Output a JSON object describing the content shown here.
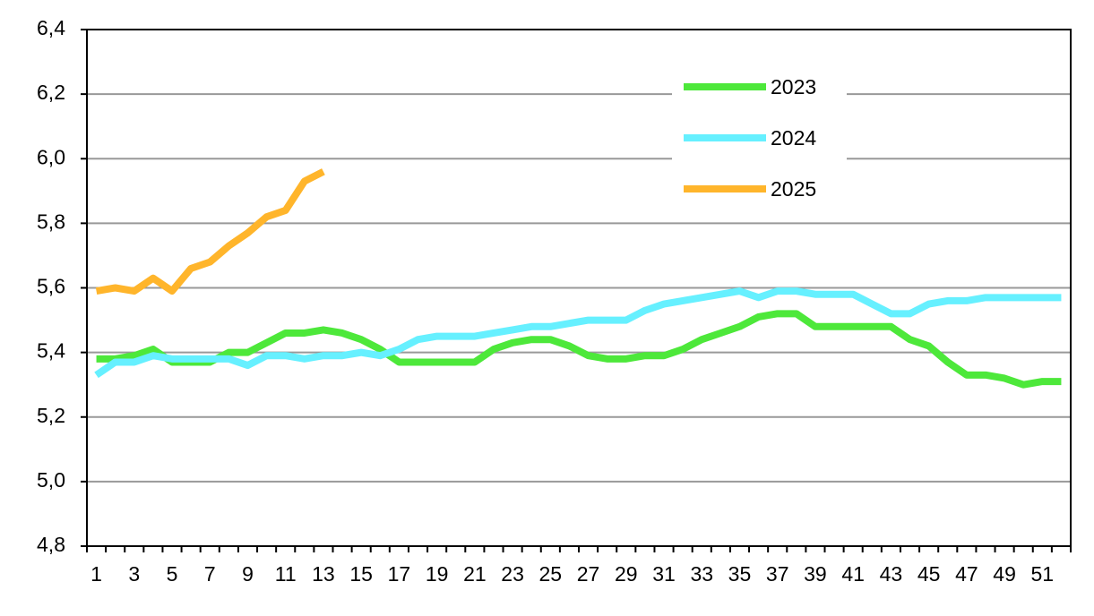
{
  "chart_data": {
    "type": "line",
    "categories": [
      1,
      null,
      3,
      null,
      5,
      null,
      7,
      null,
      9,
      null,
      11,
      null,
      13,
      null,
      15,
      null,
      17,
      null,
      19,
      null,
      21,
      null,
      23,
      null,
      25,
      null,
      27,
      null,
      29,
      null,
      31,
      null,
      33,
      null,
      35,
      null,
      37,
      null,
      39,
      null,
      41,
      null,
      43,
      null,
      45,
      null,
      47,
      null,
      49,
      null,
      51,
      null
    ],
    "series": [
      {
        "name": "2023",
        "color": "#4de83a",
        "values": [
          5.38,
          5.38,
          5.39,
          5.41,
          5.37,
          5.37,
          5.37,
          5.4,
          5.4,
          5.43,
          5.46,
          5.46,
          5.47,
          5.46,
          5.44,
          5.41,
          5.37,
          5.37,
          5.37,
          5.37,
          5.37,
          5.41,
          5.43,
          5.44,
          5.44,
          5.42,
          5.39,
          5.38,
          5.38,
          5.39,
          5.39,
          5.41,
          5.44,
          5.46,
          5.48,
          5.51,
          5.52,
          5.52,
          5.48,
          5.48,
          5.48,
          5.48,
          5.48,
          5.44,
          5.42,
          5.37,
          5.33,
          5.33,
          5.32,
          5.3,
          5.31,
          5.31
        ]
      },
      {
        "name": "2024",
        "color": "#66f0ff",
        "values": [
          5.33,
          5.37,
          5.37,
          5.39,
          5.38,
          5.38,
          5.38,
          5.38,
          5.36,
          5.39,
          5.39,
          5.38,
          5.39,
          5.39,
          5.4,
          5.39,
          5.41,
          5.44,
          5.45,
          5.45,
          5.45,
          5.46,
          5.47,
          5.48,
          5.48,
          5.49,
          5.5,
          5.5,
          5.5,
          5.53,
          5.55,
          5.56,
          5.57,
          5.58,
          5.59,
          5.57,
          5.59,
          5.59,
          5.58,
          5.58,
          5.58,
          5.55,
          5.52,
          5.52,
          5.55,
          5.56,
          5.56,
          5.57,
          5.57,
          5.57,
          5.57,
          5.57
        ]
      },
      {
        "name": "2025",
        "color": "#ffb52b",
        "values": [
          5.59,
          5.6,
          5.59,
          5.63,
          5.59,
          5.66,
          5.68,
          5.73,
          5.77,
          5.82,
          5.84,
          5.93,
          5.96,
          null,
          null,
          null,
          null,
          null,
          null,
          null,
          null,
          null,
          null,
          null,
          null,
          null,
          null,
          null,
          null,
          null,
          null,
          null,
          null,
          null,
          null,
          null,
          null,
          null,
          null,
          null,
          null,
          null,
          null,
          null,
          null,
          null,
          null,
          null,
          null,
          null,
          null,
          null
        ]
      }
    ],
    "ylim": [
      4.8,
      6.4
    ],
    "yticks": [
      {
        "value": 4.8,
        "label": "4,8"
      },
      {
        "value": 5.0,
        "label": "5,0"
      },
      {
        "value": 5.2,
        "label": "5,2"
      },
      {
        "value": 5.4,
        "label": "5,4"
      },
      {
        "value": 5.6,
        "label": "5,6"
      },
      {
        "value": 5.8,
        "label": "5,8"
      },
      {
        "value": 6.0,
        "label": "6,0"
      },
      {
        "value": 6.2,
        "label": "6,2"
      },
      {
        "value": 6.4,
        "label": "6,4"
      }
    ],
    "grid": true,
    "legend": "upper right"
  }
}
